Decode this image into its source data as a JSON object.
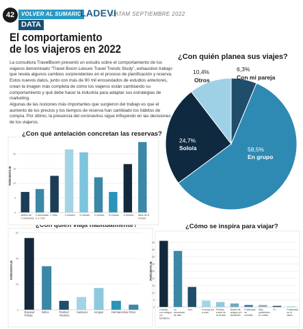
{
  "header": {
    "page_number": "42",
    "section": "VOLVER AL SUMARIO",
    "brand": "LADEVI",
    "brand_suffix": "LATAM SEPTIEMBRE 2022",
    "tag": "DATA"
  },
  "article": {
    "title_line1": "El comportamiento",
    "title_line2": "de los viajeros en 2022",
    "paragraph1": "La consultora TravelBoom presentó un estudio sobre el comportamiento de los viajeros denominado “Travel Boom Leisure Travel Trends Study”, exhaustivo trabajo que revela algunos cambios sorprendentes en el proceso de planificación y reserva. Estos nuevos datos, junto con más de 90 mil encuestados de estudios anteriores, crean la imagen más completa de cómo los viajeros están cambiando su comportamiento y qué debe hacer la industria para adaptar sus estrategias de marketing.",
    "paragraph2": "Algunas de las nociones más importantes que surgieron del trabajo es que el aumento de los precios y los tiempos de reserva han cambiado los hábitos de compra. Por último, la presencia del coronavirus sigue influyendo en las decisiones de los viajeros."
  },
  "chart_data": [
    {
      "type": "pie",
      "title": "¿Con quién planea sus viajes?",
      "slices": [
        {
          "label": "Con mi pareja",
          "value": 6.3,
          "value_label": "6,3%",
          "color": "#1f4d6b"
        },
        {
          "label": "En grupo",
          "value": 58.5,
          "value_label": "58,5%",
          "color": "#2e8ab3"
        },
        {
          "label": "Solo/a",
          "value": 24.7,
          "value_label": "24,7%",
          "color": "#0f2a40"
        },
        {
          "label": "Otros",
          "value": 10.4,
          "value_label": "10,4%",
          "color": "#9ed1e6"
        }
      ]
    },
    {
      "type": "bar",
      "title": "¿Con qué antelación concretan las reservas?",
      "ylabel": "PORCENTAJE",
      "ylim": [
        0,
        25
      ],
      "yticks": [
        0,
        5,
        10,
        15,
        20
      ],
      "categories": [
        "Antes de 2 semanas",
        "2 semanas a 1 mes",
        "1 mes",
        "2 meses",
        "3 meses",
        "4 meses",
        "5 meses",
        "6 meses",
        "Más de 6 meses"
      ],
      "values": [
        7,
        8,
        12.5,
        21.5,
        20.5,
        12,
        7,
        16.5,
        24
      ],
      "colors": [
        "#1b3d57",
        "#3b87a6",
        "#1b3d57",
        "#a3d4e6",
        "#7cc3dc",
        "#3b87a6",
        "#2a94ba",
        "#13293b",
        "#3b87a6"
      ]
    },
    {
      "type": "bar",
      "title": "¿Con quién viaja habitualmente?",
      "ylabel": "PORCENTAJE",
      "ylim": [
        0,
        62
      ],
      "yticks": [
        0,
        20,
        40,
        60
      ],
      "categories": [
        "Esposa/ Pareja",
        "Niños",
        "Padres/ Abuelos",
        "Santacio",
        "Amigos",
        "Hermanos/as",
        "Otros"
      ],
      "values": [
        56,
        34,
        7,
        10,
        17,
        7,
        4
      ],
      "colors": [
        "#13293b",
        "#3b87a6",
        "#1f4d6b",
        "#a3d4e6",
        "#8cc9df",
        "#2a94ba",
        "#3b87a6"
      ]
    },
    {
      "type": "bar",
      "title": "¿Cómo se inspira para viajar?",
      "ylabel": "PORCENTAJE",
      "ylim": [
        0,
        50
      ],
      "yticks": [
        0,
        5,
        10,
        15,
        20,
        25,
        30,
        35,
        40,
        45
      ],
      "categories": [
        "Charlas con amigos y/o familiares",
        "La necesidad de salir",
        "Otro",
        "Promos por e-mail",
        "Política social de la ciudad",
        "Redes de amigos y/o familiares",
        "Publicidad en revistas",
        "Sitio publicitario en online",
        "TV",
        "Publicidad en el diario"
      ],
      "values": [
        46,
        39,
        14,
        4.5,
        3.5,
        2.5,
        1.5,
        1.5,
        0.8,
        0.5
      ],
      "colors": [
        "#13293b",
        "#3b87a6",
        "#1f4d6b",
        "#a3d4e6",
        "#8cc9df",
        "#6fa9be",
        "#3b87a6",
        "#9ab3bf",
        "#1f4d6b",
        "#a3d4e6"
      ]
    }
  ]
}
